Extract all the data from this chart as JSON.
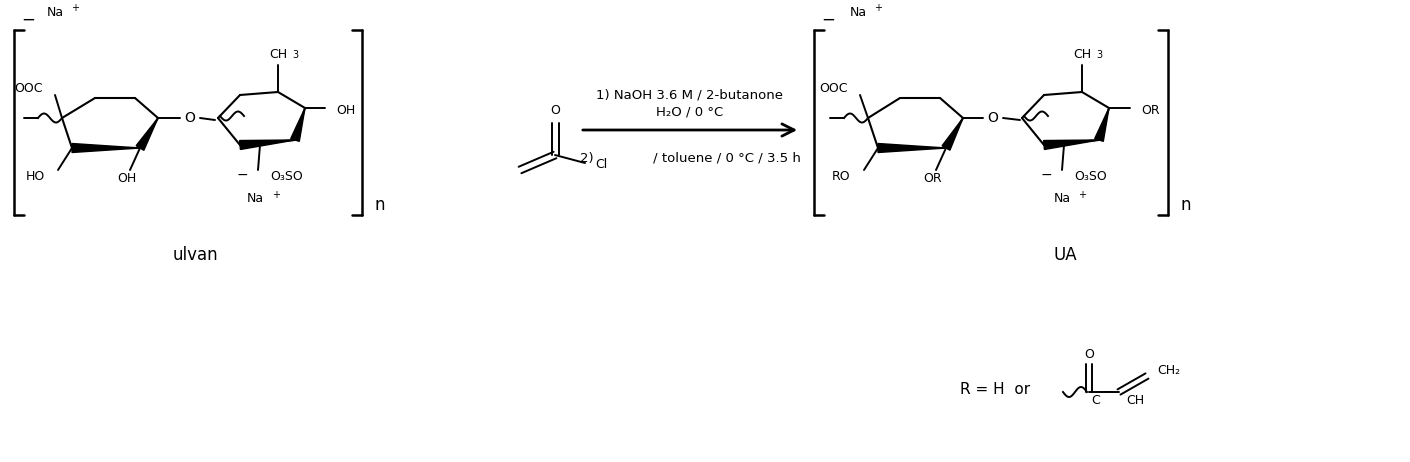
{
  "figsize": [
    14.1,
    4.62
  ],
  "dpi": 100,
  "bg": "#ffffff",
  "ulvan_label": "ulvan",
  "ua_label": "UA",
  "step1": "1) NaOH 3.6 M / 2-butanone",
  "step1b": "H₂O / 0 °C",
  "step2": "2)              / toluene / 0 °C / 3.5 h",
  "R_text": "R = H  or",
  "n_label": "n"
}
